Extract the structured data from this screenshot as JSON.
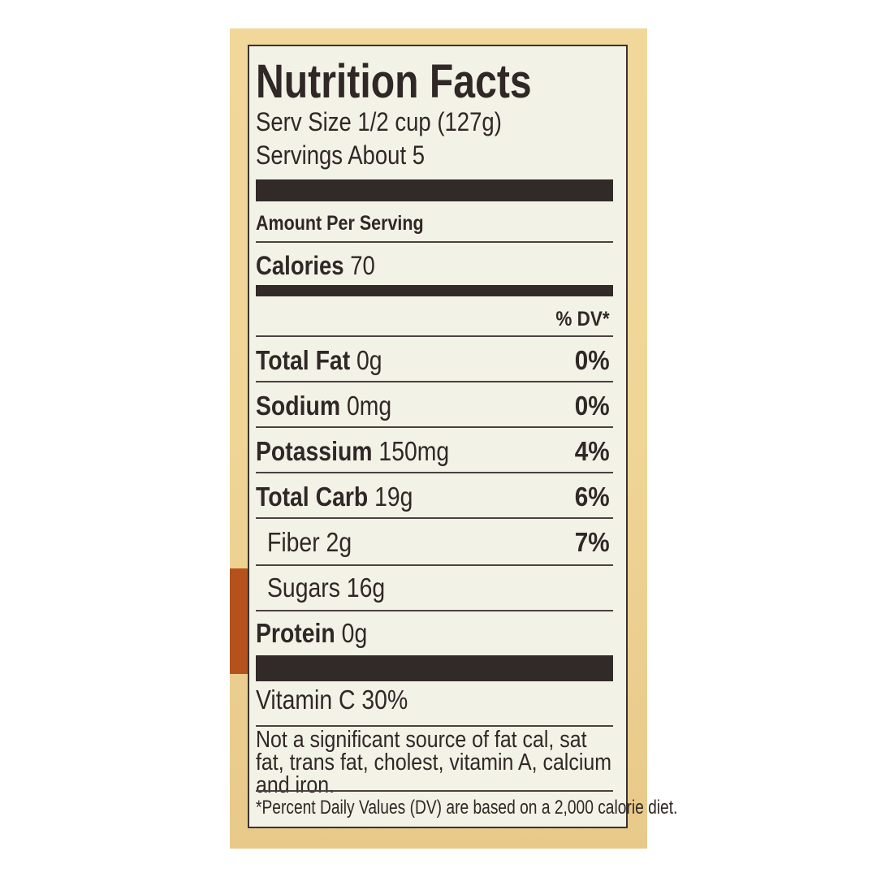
{
  "title": "Nutrition Facts",
  "serving_size": "Serv Size 1/2 cup (127g)",
  "servings": "Servings About 5",
  "amount_per_serving": "Amount Per Serving",
  "calories": {
    "label": "Calories",
    "value": "70"
  },
  "dv_header": "% DV*",
  "nutrients": [
    {
      "label": "Total Fat",
      "amount": "0g",
      "dv": "0%"
    },
    {
      "label": "Sodium",
      "amount": "0mg",
      "dv": "0%"
    },
    {
      "label": "Potassium",
      "amount": "150mg",
      "dv": "4%"
    },
    {
      "label": "Total Carb",
      "amount": "19g",
      "dv": "6%"
    },
    {
      "label": "Fiber",
      "amount": "2g",
      "dv": "7%"
    },
    {
      "label": "Sugars",
      "amount": "16g",
      "dv": ""
    },
    {
      "label": "Protein",
      "amount": "0g",
      "dv": ""
    }
  ],
  "vitamin": "Vitamin C 30%",
  "note": "Not a significant source of fat cal, sat fat, trans fat, cholest, vitamin A, calcium and iron.",
  "footnote": "*Percent Daily Values (DV) are based on a 2,000 calorie diet.",
  "colors": {
    "ink": "#2f2826",
    "label_bg": "#f3f2e6",
    "package": "#efd596",
    "accent_strip": "#b5521b"
  }
}
